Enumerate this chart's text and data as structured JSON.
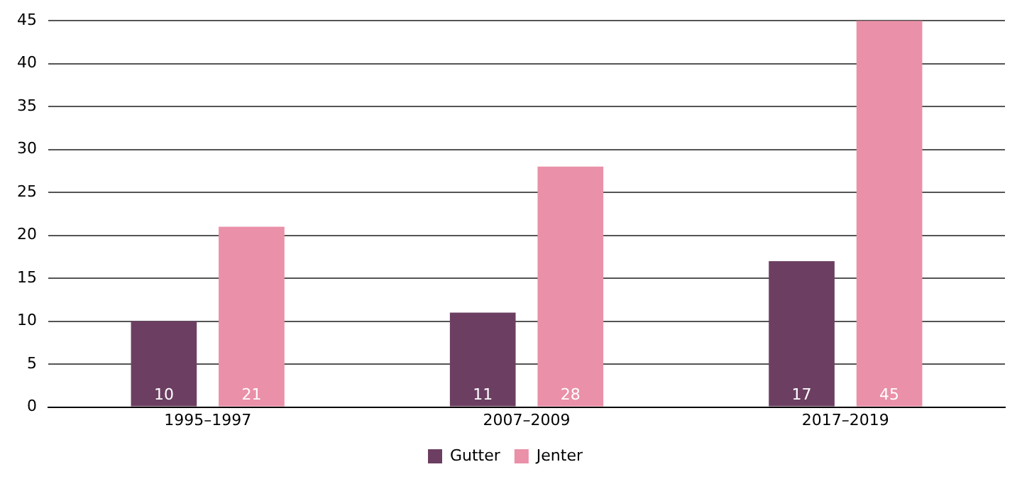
{
  "chart_data": {
    "type": "bar",
    "categories": [
      "1995–1997",
      "2007–2009",
      "2017–2019"
    ],
    "series": [
      {
        "name": "Gutter",
        "color": "#6c3f62",
        "values": [
          10,
          11,
          17
        ]
      },
      {
        "name": "Jenter",
        "color": "#ea90a8",
        "values": [
          21,
          28,
          45
        ]
      }
    ],
    "ylim": [
      0,
      45
    ],
    "yticks": [
      0,
      5,
      10,
      15,
      20,
      25,
      30,
      35,
      40,
      45
    ],
    "grid": "y",
    "legend": "bottom",
    "data_labels": true
  }
}
